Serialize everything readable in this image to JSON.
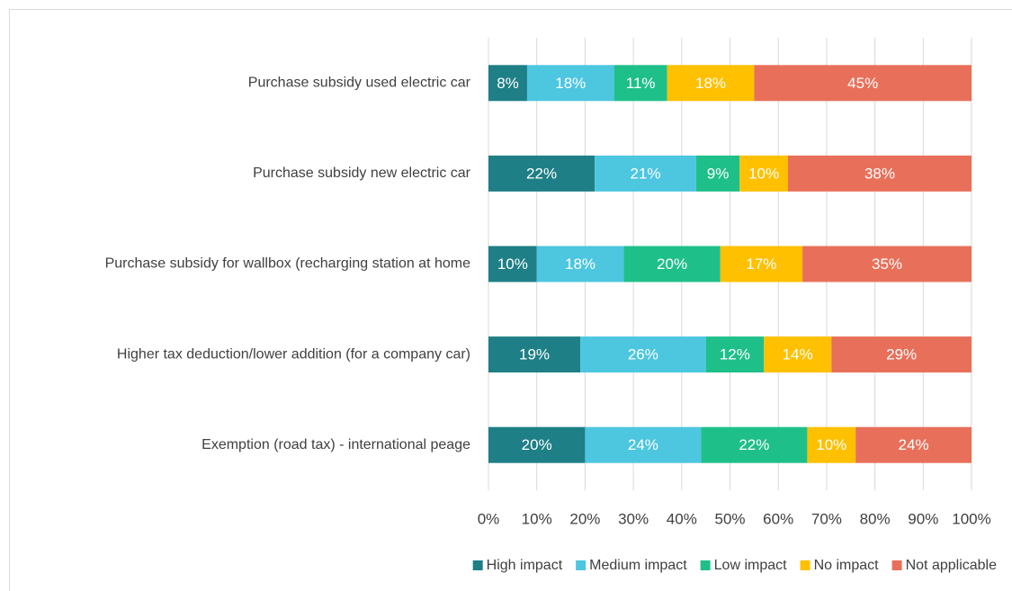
{
  "chart_data": {
    "type": "stacked_barh",
    "categories": [
      "Purchase subsidy used electric car",
      "Purchase subsidy new electric car",
      "Purchase subsidy for wallbox (recharging station at home",
      "Higher tax deduction/lower addition (for a company car)",
      "Exemption (road tax) - international peage"
    ],
    "series": [
      {
        "name": "High impact",
        "color": "#1f7f86",
        "values": [
          8,
          22,
          10,
          19,
          20
        ],
        "value_labels": [
          "8%",
          "22%",
          "10%",
          "19%",
          "20%"
        ]
      },
      {
        "name": "Medium impact",
        "color": "#4dc6e0",
        "values": [
          18,
          21,
          18,
          26,
          24
        ],
        "value_labels": [
          "18%",
          "21%",
          "18%",
          "26%",
          "24%"
        ]
      },
      {
        "name": "Low impact",
        "color": "#1fbf8a",
        "values": [
          11,
          9,
          20,
          12,
          22
        ],
        "value_labels": [
          "11%",
          "9%",
          "20%",
          "12%",
          "22%"
        ]
      },
      {
        "name": "No impact",
        "color": "#ffc000",
        "values": [
          18,
          10,
          17,
          14,
          10
        ],
        "value_labels": [
          "18%",
          "10%",
          "17%",
          "14%",
          "10%"
        ]
      },
      {
        "name": "Not applicable",
        "color": "#e8705a",
        "values": [
          45,
          38,
          35,
          29,
          24
        ],
        "value_labels": [
          "45%",
          "38%",
          "35%",
          "29%",
          "24%"
        ]
      }
    ],
    "xlim": [
      0,
      100
    ],
    "xticks": [
      {
        "value": 0,
        "label": "0%"
      },
      {
        "value": 10,
        "label": "10%"
      },
      {
        "value": 20,
        "label": "20%"
      },
      {
        "value": 30,
        "label": "30%"
      },
      {
        "value": 40,
        "label": "40%"
      },
      {
        "value": 50,
        "label": "50%"
      },
      {
        "value": 60,
        "label": "60%"
      },
      {
        "value": 70,
        "label": "70%"
      },
      {
        "value": 80,
        "label": "80%"
      },
      {
        "value": 90,
        "label": "90%"
      },
      {
        "value": 100,
        "label": "100%"
      }
    ],
    "grid": true,
    "legend": "bottom"
  }
}
